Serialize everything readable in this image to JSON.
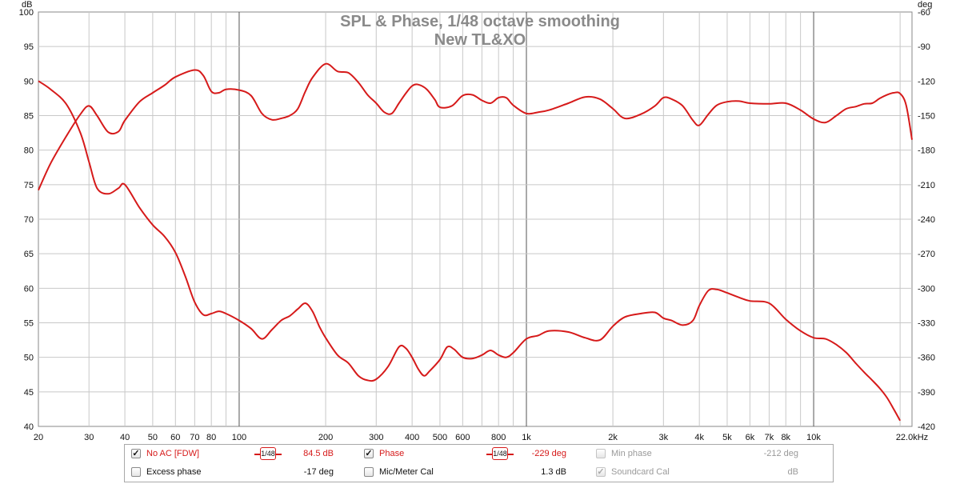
{
  "chart_data": {
    "type": "line",
    "title": "SPL & Phase, 1/48 octave smoothing",
    "subtitle": "New TL&XO",
    "xscale": "log",
    "xlim": [
      20,
      22000
    ],
    "ylabel_left": "dB",
    "ylabel_right": "deg",
    "ylim_left": [
      40,
      100
    ],
    "ylim_right": [
      -420,
      -60
    ],
    "grid": true,
    "x_ticks": [
      {
        "v": 20,
        "label": "20"
      },
      {
        "v": 30,
        "label": "30"
      },
      {
        "v": 40,
        "label": "40"
      },
      {
        "v": 50,
        "label": "50"
      },
      {
        "v": 60,
        "label": "60"
      },
      {
        "v": 70,
        "label": "70"
      },
      {
        "v": 80,
        "label": "80"
      },
      {
        "v": 100,
        "label": "100"
      },
      {
        "v": 200,
        "label": "200"
      },
      {
        "v": 300,
        "label": "300"
      },
      {
        "v": 400,
        "label": "400"
      },
      {
        "v": 500,
        "label": "500"
      },
      {
        "v": 600,
        "label": "600"
      },
      {
        "v": 800,
        "label": "800"
      },
      {
        "v": 1000,
        "label": "1k"
      },
      {
        "v": 2000,
        "label": "2k"
      },
      {
        "v": 3000,
        "label": "3k"
      },
      {
        "v": 4000,
        "label": "4k"
      },
      {
        "v": 5000,
        "label": "5k"
      },
      {
        "v": 6000,
        "label": "6k"
      },
      {
        "v": 7000,
        "label": "7k"
      },
      {
        "v": 8000,
        "label": "8k"
      },
      {
        "v": 10000,
        "label": "10k"
      },
      {
        "v": 22000,
        "label": "22.0kHz"
      }
    ],
    "y_ticks_left": [
      "100",
      "95",
      "90",
      "85",
      "80",
      "75",
      "70",
      "65",
      "60",
      "55",
      "50",
      "45",
      "40"
    ],
    "y_ticks_right": [
      "-60",
      "-90",
      "-120",
      "-150",
      "-180",
      "-210",
      "-240",
      "-270",
      "-300",
      "-330",
      "-360",
      "-390",
      "-420"
    ],
    "series": [
      {
        "name": "No AC [FDW]",
        "axis": "left",
        "color": "#d61a1a",
        "x": [
          20,
          22,
          25,
          28,
          30,
          32,
          35,
          38,
          40,
          45,
          50,
          55,
          60,
          70,
          75,
          80,
          85,
          90,
          100,
          110,
          120,
          130,
          140,
          150,
          160,
          170,
          180,
          200,
          220,
          240,
          260,
          280,
          300,
          320,
          340,
          360,
          380,
          400,
          420,
          450,
          480,
          500,
          550,
          600,
          650,
          700,
          750,
          800,
          850,
          900,
          1000,
          1100,
          1200,
          1400,
          1600,
          1800,
          2000,
          2200,
          2500,
          2800,
          3000,
          3200,
          3500,
          3800,
          4000,
          4300,
          4600,
          5000,
          5500,
          6000,
          7000,
          8000,
          9000,
          10000,
          11000,
          12000,
          13000,
          14000,
          15000,
          16000,
          17000,
          18000,
          19000,
          20000,
          21000,
          22000
        ],
        "values": [
          74.2,
          78.0,
          82.0,
          85.2,
          86.4,
          85.0,
          82.6,
          82.7,
          84.3,
          87.0,
          88.3,
          89.4,
          90.6,
          91.6,
          90.8,
          88.5,
          88.3,
          88.8,
          88.7,
          87.9,
          85.3,
          84.4,
          84.6,
          85.0,
          86.0,
          88.5,
          90.5,
          92.5,
          91.4,
          91.2,
          89.8,
          88.0,
          86.8,
          85.5,
          85.3,
          86.8,
          88.2,
          89.3,
          89.5,
          88.8,
          87.3,
          86.2,
          86.4,
          87.9,
          88.0,
          87.2,
          86.8,
          87.6,
          87.6,
          86.5,
          85.3,
          85.5,
          85.8,
          86.8,
          87.7,
          87.4,
          86.0,
          84.6,
          85.2,
          86.4,
          87.6,
          87.4,
          86.4,
          84.3,
          83.6,
          85.2,
          86.5,
          87.0,
          87.1,
          86.8,
          86.7,
          86.8,
          85.8,
          84.5,
          84.0,
          85.0,
          86.0,
          86.3,
          86.7,
          86.8,
          87.5,
          88.0,
          88.3,
          88.2,
          86.5,
          81.5
        ]
      },
      {
        "name": "Phase",
        "axis": "right",
        "color": "#d61a1a",
        "x": [
          20,
          22,
          25,
          28,
          30,
          32,
          35,
          38,
          40,
          45,
          50,
          55,
          60,
          65,
          70,
          75,
          80,
          85,
          90,
          100,
          110,
          120,
          130,
          140,
          150,
          160,
          170,
          180,
          190,
          200,
          220,
          240,
          260,
          280,
          300,
          330,
          360,
          380,
          400,
          420,
          440,
          460,
          500,
          530,
          560,
          600,
          650,
          700,
          750,
          800,
          850,
          900,
          1000,
          1100,
          1200,
          1400,
          1600,
          1800,
          2000,
          2200,
          2500,
          2800,
          3000,
          3200,
          3500,
          3800,
          4000,
          4300,
          4600,
          5000,
          5500,
          6000,
          7000,
          8000,
          9000,
          10000,
          11000,
          12000,
          13000,
          14000,
          15000,
          16000,
          17000,
          18000,
          19000,
          20000
        ],
        "values": [
          -120,
          -127,
          -140,
          -165,
          -190,
          -213,
          -218,
          -213,
          -210,
          -230,
          -245,
          -255,
          -269,
          -290,
          -312,
          -323,
          -322,
          -320,
          -322,
          -328,
          -335,
          -344,
          -336,
          -328,
          -324,
          -318,
          -313,
          -320,
          -333,
          -343,
          -358,
          -365,
          -376,
          -380,
          -379,
          -368,
          -351,
          -352,
          -360,
          -370,
          -376,
          -372,
          -362,
          -351,
          -353,
          -360,
          -361,
          -358,
          -354,
          -358,
          -360,
          -356,
          -344,
          -341,
          -337,
          -338,
          -343,
          -345,
          -333,
          -325,
          -322,
          -321,
          -326,
          -328,
          -332,
          -328,
          -315,
          -302,
          -301,
          -304,
          -308,
          -311,
          -313,
          -327,
          -337,
          -343,
          -344,
          -349,
          -356,
          -365,
          -373,
          -380,
          -387,
          -395,
          -405,
          -415
        ]
      }
    ]
  },
  "legend": {
    "row1": {
      "noac_label": "No AC [FDW]",
      "noac_smooth": "1/48",
      "noac_value": "84.5 dB",
      "phase_label": "Phase",
      "phase_smooth": "1/48",
      "phase_value": "-229 deg",
      "minphase_label": "Min phase",
      "minphase_value": "-212 deg"
    },
    "row2": {
      "excess_label": "Excess phase",
      "excess_value": "-17 deg",
      "mic_label": "Mic/Meter Cal",
      "mic_value": "1.3 dB",
      "soundcard_label": "Soundcard Cal",
      "soundcard_value": "dB"
    },
    "checked": [
      "✓"
    ]
  }
}
